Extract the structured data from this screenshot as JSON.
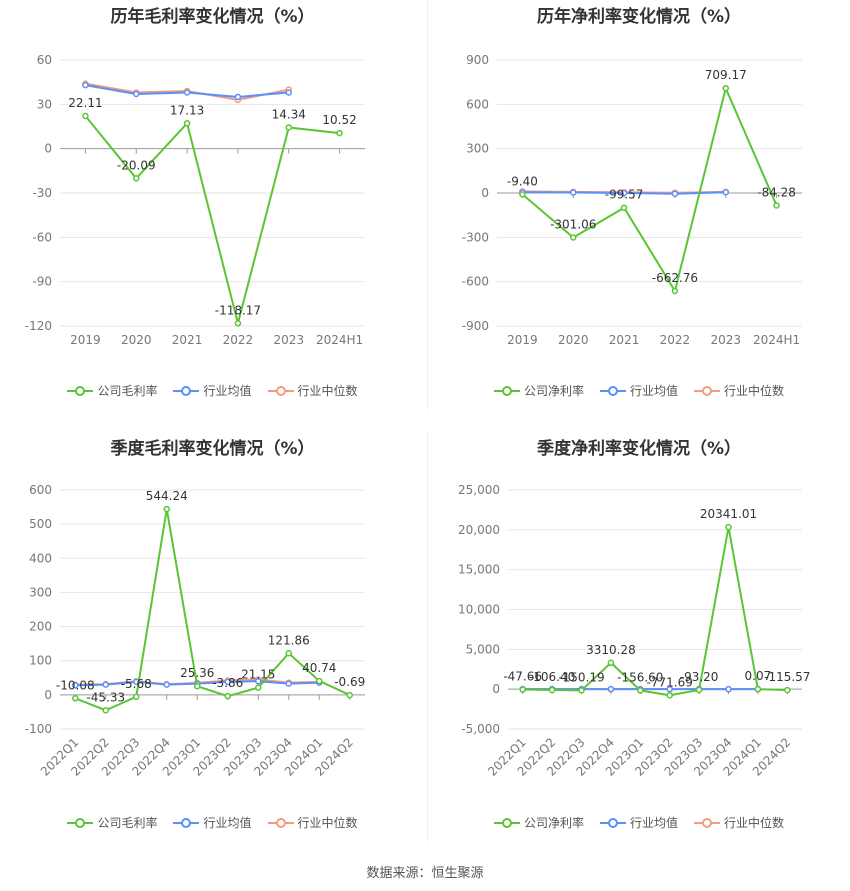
{
  "source": "数据来源：恒生聚源",
  "colors": {
    "company": "#5ac532",
    "avg": "#5b8ff9",
    "median": "#f49a7f"
  },
  "legend_names": {
    "gross": [
      "公司毛利率",
      "行业均值",
      "行业中位数"
    ],
    "net": [
      "公司净利率",
      "行业均值",
      "行业中位数"
    ]
  },
  "chart_data": [
    {
      "type": "line",
      "title": "历年毛利率变化情况（%）",
      "categories": [
        "2019",
        "2020",
        "2021",
        "2022",
        "2023",
        "2024H1"
      ],
      "ylim": [
        -120,
        60
      ],
      "yticks": [
        "60",
        "30",
        "0",
        "-30",
        "-60",
        "-90",
        "-120"
      ],
      "ytick_values": [
        60,
        30,
        0,
        -30,
        -60,
        -90,
        -120
      ],
      "series": [
        {
          "name": "公司毛利率",
          "values": [
            22.11,
            -20.09,
            17.13,
            -118.17,
            14.34,
            10.52
          ],
          "labels": [
            "22.11",
            "-20.09",
            "17.13",
            "-118.17",
            "14.34",
            "10.52"
          ]
        },
        {
          "name": "行业均值",
          "values": [
            43,
            37,
            38,
            35,
            38,
            null
          ]
        },
        {
          "name": "行业中位数",
          "values": [
            44,
            38,
            39,
            33,
            40,
            null
          ]
        }
      ],
      "grid": true,
      "legend": "bottom"
    },
    {
      "type": "line",
      "title": "历年净利率变化情况（%）",
      "categories": [
        "2019",
        "2020",
        "2021",
        "2022",
        "2023",
        "2024H1"
      ],
      "ylim": [
        -900,
        900
      ],
      "yticks": [
        "900",
        "600",
        "300",
        "0",
        "-300",
        "-600",
        "-900"
      ],
      "ytick_values": [
        900,
        600,
        300,
        0,
        -300,
        -600,
        -900
      ],
      "series": [
        {
          "name": "公司净利率",
          "values": [
            -9.4,
            -301.06,
            -99.57,
            -662.76,
            709.17,
            -84.28
          ],
          "labels": [
            "-9.40",
            "-301.06",
            "-99.57",
            "-662.76",
            "709.17",
            "-84.28"
          ]
        },
        {
          "name": "行业均值",
          "values": [
            5,
            3,
            0,
            -5,
            5,
            null
          ]
        },
        {
          "name": "行业中位数",
          "values": [
            10,
            8,
            5,
            2,
            8,
            null
          ]
        }
      ],
      "grid": true,
      "legend": "bottom"
    },
    {
      "type": "line",
      "title": "季度毛利率变化情况（%）",
      "categories": [
        "2022Q1",
        "2022Q2",
        "2022Q3",
        "2022Q4",
        "2023Q1",
        "2023Q2",
        "2023Q3",
        "2023Q4",
        "2024Q1",
        "2024Q2"
      ],
      "ylim": [
        -100,
        600
      ],
      "yticks": [
        "600",
        "500",
        "400",
        "300",
        "200",
        "100",
        "0",
        "-100"
      ],
      "ytick_values": [
        600,
        500,
        400,
        300,
        200,
        100,
        0,
        -100
      ],
      "series": [
        {
          "name": "公司毛利率",
          "values": [
            -10.08,
            -45.33,
            -5.68,
            544.24,
            25.36,
            -3.86,
            21.15,
            121.86,
            40.74,
            -0.69
          ],
          "labels": [
            "-10.08",
            "-45.33",
            "-5.68",
            "544.24",
            "25.36",
            "-3.86",
            "21.15",
            "121.86",
            "40.74",
            "-0.69"
          ]
        },
        {
          "name": "行业均值",
          "values": [
            28,
            30,
            38,
            30,
            33,
            38,
            40,
            33,
            36,
            null
          ]
        },
        {
          "name": "行业中位数",
          "values": [
            30,
            31,
            40,
            31,
            35,
            42,
            45,
            36,
            38,
            null
          ]
        }
      ],
      "grid": true,
      "legend": "bottom"
    },
    {
      "type": "line",
      "title": "季度净利率变化情况（%）",
      "categories": [
        "2022Q1",
        "2022Q2",
        "2022Q3",
        "2022Q4",
        "2023Q1",
        "2023Q2",
        "2023Q3",
        "2023Q4",
        "2024Q1",
        "2024Q2"
      ],
      "ylim": [
        -5000,
        25000
      ],
      "yticks": [
        "25,000",
        "20,000",
        "15,000",
        "10,000",
        "5,000",
        "0",
        "-5,000"
      ],
      "ytick_values": [
        25000,
        20000,
        15000,
        10000,
        5000,
        0,
        -5000
      ],
      "series": [
        {
          "name": "公司净利率",
          "values": [
            -47.66,
            -106.4,
            -150.19,
            3310.28,
            -156.6,
            -771.69,
            -93.2,
            20341.01,
            0.07,
            -115.57
          ],
          "labels": [
            "-47.66",
            "-106.40",
            "-150.19",
            "3310.28",
            "-156.60",
            "-771.69",
            "-93.20",
            "20341.01",
            "0.07",
            "-115.57"
          ]
        },
        {
          "name": "行业均值",
          "values": [
            0,
            0,
            0,
            0,
            0,
            0,
            0,
            0,
            0,
            null
          ]
        },
        {
          "name": "行业中位数",
          "values": [
            5,
            5,
            5,
            5,
            5,
            5,
            5,
            5,
            5,
            null
          ]
        }
      ],
      "grid": true,
      "legend": "bottom"
    }
  ]
}
